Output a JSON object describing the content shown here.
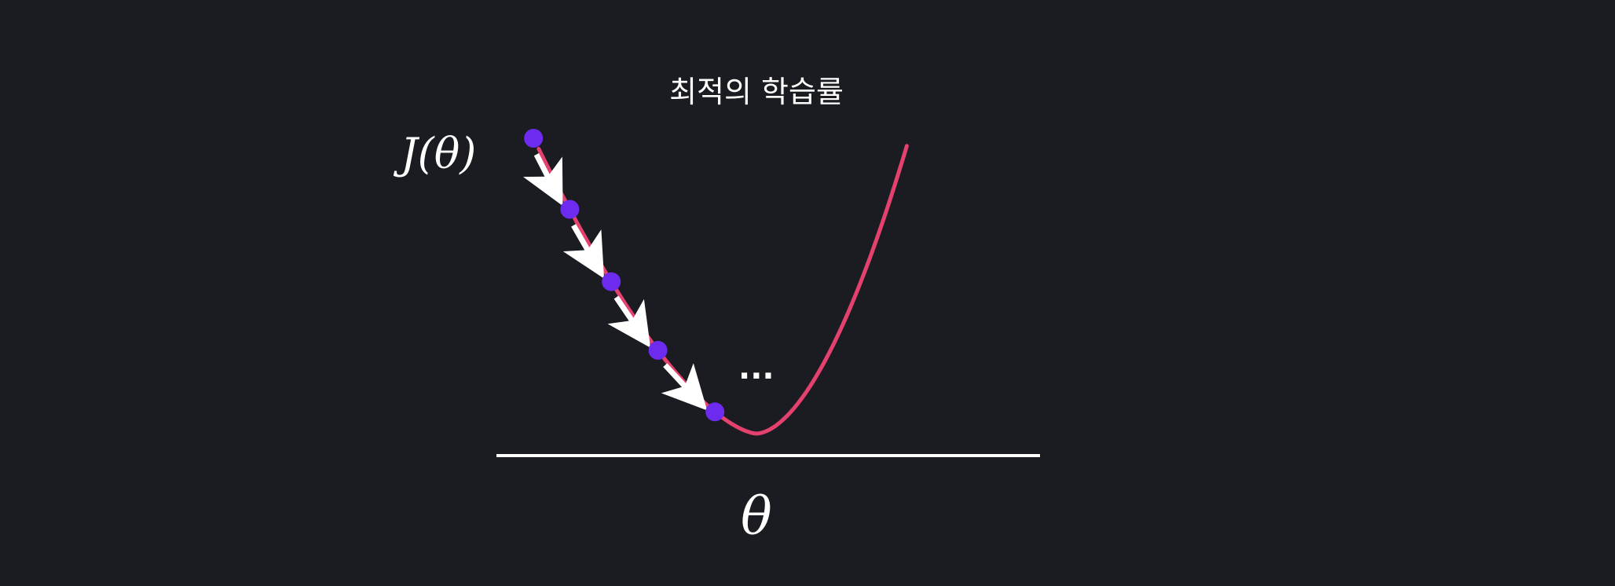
{
  "title": "최적의 학습률",
  "y_axis_label": "J(θ)",
  "x_axis_label": "θ",
  "ellipsis": "...",
  "colors": {
    "background": "#1a1c21",
    "curve": "#e5416e",
    "points": "#6c2bee",
    "arrows": "#ffffff",
    "axis": "#ffffff",
    "text": "#ffffff"
  },
  "chart_data": {
    "type": "line",
    "description_curve": "convex cost function J(θ) with gradient descent steps",
    "step_points": [
      {
        "theta": -0.86,
        "cost": 0.74
      },
      {
        "theta": -0.72,
        "cost": 0.52
      },
      {
        "theta": -0.56,
        "cost": 0.31
      },
      {
        "theta": -0.38,
        "cost": 0.145
      },
      {
        "theta": -0.16,
        "cost": 0.025
      }
    ],
    "minimum": {
      "theta": 0.0,
      "cost": 0.0
    },
    "num_steps_shown": 4
  }
}
